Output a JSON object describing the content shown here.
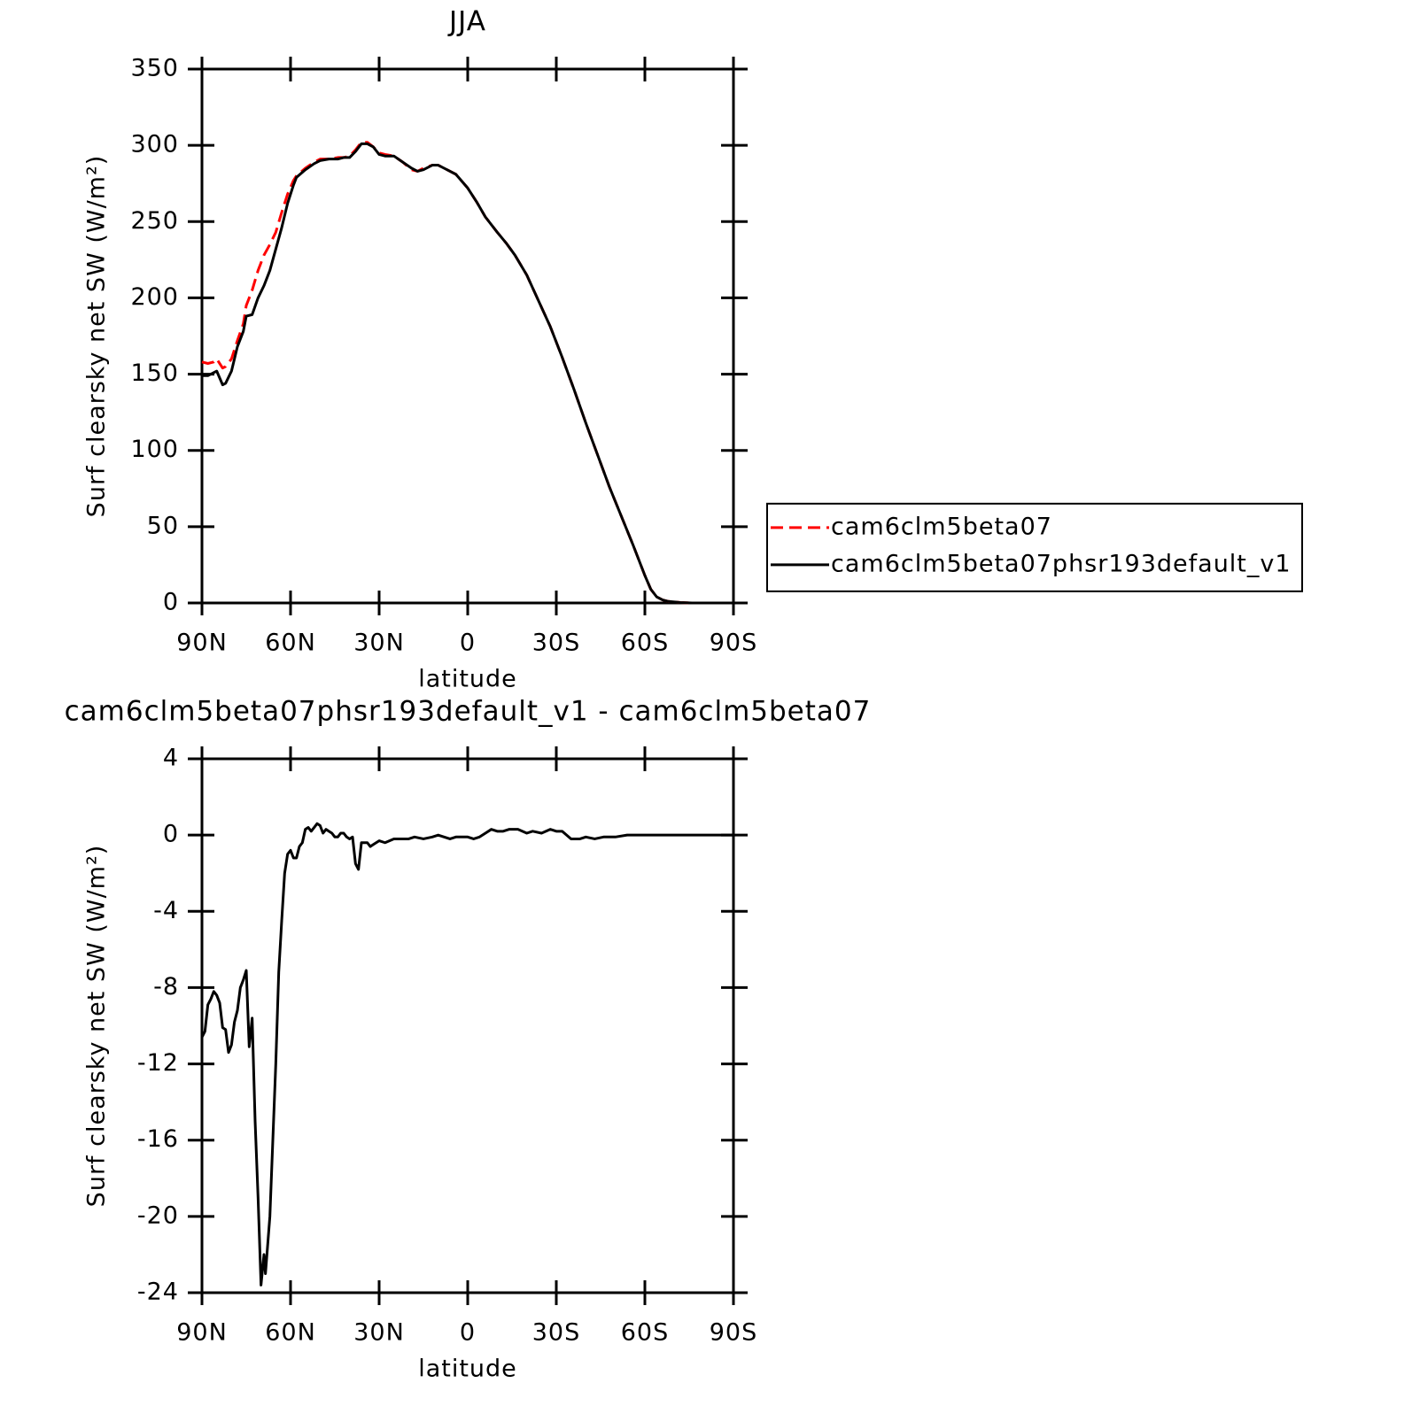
{
  "chart_data": [
    {
      "type": "line",
      "title": "JJA",
      "xlabel": "latitude",
      "ylabel": "Surf clearsky net SW (W/m²)",
      "x": [
        90,
        88,
        86,
        85,
        83,
        82,
        80,
        78,
        76,
        75,
        73,
        71,
        69,
        67,
        65,
        63,
        61,
        59,
        58,
        55,
        52,
        50,
        47,
        44,
        42,
        40,
        38,
        36,
        34,
        32,
        30,
        28,
        25,
        22,
        19,
        17,
        15,
        12,
        10,
        7,
        4,
        0,
        -3,
        -6,
        -10,
        -13,
        -16,
        -20,
        -24,
        -28,
        -32,
        -36,
        -40,
        -44,
        -48,
        -52,
        -56,
        -58,
        -60,
        -62,
        -64,
        -66,
        -68,
        -72,
        -76,
        -80,
        -85,
        -90
      ],
      "series": [
        {
          "name": "cam6clm5beta07",
          "color": "#ff0000",
          "dash": true,
          "values": [
            158,
            157,
            158,
            160,
            154,
            155,
            160,
            172,
            183,
            195,
            205,
            218,
            228,
            235,
            243,
            256,
            268,
            277,
            280,
            285,
            289,
            291,
            291,
            292,
            292,
            293,
            297,
            302,
            302,
            299,
            295,
            294,
            293,
            289,
            284,
            283,
            285,
            287,
            287,
            284,
            281,
            272,
            263,
            253,
            243,
            236,
            228,
            215,
            198,
            181,
            161,
            140,
            118,
            97,
            76,
            57,
            38,
            28,
            18,
            9,
            4,
            2,
            1,
            0.3,
            0,
            0,
            0,
            0
          ]
        },
        {
          "name": "cam6clm5beta07phsr193default_v1",
          "color": "#000000",
          "dash": false,
          "values": [
            149,
            149,
            151,
            152,
            143,
            144,
            152,
            168,
            178,
            188,
            189,
            200,
            208,
            218,
            232,
            246,
            262,
            274,
            279,
            284,
            288,
            290,
            291,
            291,
            292,
            292,
            296,
            301,
            301,
            299,
            294,
            293,
            293,
            289,
            285,
            283,
            284,
            287,
            287,
            284,
            281,
            272,
            263,
            253,
            243,
            236,
            228,
            215,
            198,
            181,
            161,
            140,
            118,
            97,
            76,
            57,
            38,
            28,
            18,
            9,
            4,
            2,
            1,
            0.3,
            0,
            0,
            0,
            0
          ]
        }
      ],
      "xlim": [
        90,
        -90
      ],
      "xticks": [
        {
          "value": 90,
          "label": "90N"
        },
        {
          "value": 60,
          "label": "60N"
        },
        {
          "value": 30,
          "label": "30N"
        },
        0,
        {
          "value": -30,
          "label": "30S"
        },
        {
          "value": -60,
          "label": "60S"
        },
        {
          "value": -90,
          "label": "90S"
        }
      ],
      "ylim": [
        0,
        350
      ],
      "yticks": [
        0,
        50,
        100,
        150,
        200,
        250,
        300,
        350
      ],
      "legend": "right"
    },
    {
      "type": "line",
      "title": "cam6clm5beta07phsr193default_v1 - cam6clm5beta07",
      "xlabel": "latitude",
      "ylabel": "Surf clearsky net SW (W/m²)",
      "x": [
        90,
        89,
        88,
        87,
        86,
        85,
        84,
        83,
        82,
        81,
        80,
        79,
        78,
        77,
        76,
        75,
        74,
        73,
        72,
        71,
        70,
        69,
        68.5,
        67,
        66,
        65,
        64,
        63,
        62,
        61,
        60,
        59,
        58,
        57,
        56,
        55,
        54,
        53,
        52,
        51,
        50,
        49,
        48,
        47,
        46,
        45,
        44,
        43,
        42,
        41,
        40,
        39,
        38,
        37,
        36,
        35,
        34,
        33,
        32,
        30,
        28,
        25,
        22,
        20,
        18,
        15,
        12,
        10,
        8,
        6,
        4,
        2,
        0,
        -2,
        -4,
        -6,
        -8,
        -10,
        -12,
        -14,
        -17,
        -20,
        -22,
        -25,
        -28,
        -30,
        -32,
        -35,
        -38,
        -40,
        -43,
        -46,
        -50,
        -54,
        -58,
        -62,
        -70,
        -80,
        -90
      ],
      "series": [
        {
          "color": "#000000",
          "dash": false,
          "values": [
            -10.6,
            -10.3,
            -8.9,
            -8.6,
            -8.2,
            -8.4,
            -8.8,
            -10.1,
            -10.2,
            -11.4,
            -11,
            -9.8,
            -9.2,
            -8,
            -7.6,
            -7.1,
            -11.1,
            -9.6,
            -15,
            -19,
            -23.6,
            -22,
            -23,
            -20,
            -16,
            -12,
            -7.2,
            -4.5,
            -2,
            -1,
            -0.8,
            -1.2,
            -1.2,
            -0.6,
            -0.4,
            0.3,
            0.4,
            0.2,
            0.4,
            0.6,
            0.5,
            0.1,
            0.3,
            0.2,
            0.1,
            -0.1,
            -0.1,
            0.1,
            0.1,
            -0.1,
            -0.2,
            -0.1,
            -1.5,
            -1.8,
            -0.4,
            -0.4,
            -0.4,
            -0.6,
            -0.5,
            -0.3,
            -0.4,
            -0.2,
            -0.2,
            -0.2,
            -0.1,
            -0.2,
            -0.1,
            0,
            -0.1,
            -0.2,
            -0.1,
            -0.1,
            -0.1,
            -0.2,
            -0.1,
            0.1,
            0.3,
            0.2,
            0.2,
            0.3,
            0.3,
            0.1,
            0.2,
            0.1,
            0.3,
            0.2,
            0.2,
            -0.2,
            -0.2,
            -0.1,
            -0.2,
            -0.1,
            -0.1,
            0,
            0,
            0,
            0,
            0,
            0
          ]
        }
      ],
      "xlim": [
        90,
        -90
      ],
      "xticks": [
        {
          "value": 90,
          "label": "90N"
        },
        {
          "value": 60,
          "label": "60N"
        },
        {
          "value": 30,
          "label": "30N"
        },
        0,
        {
          "value": -30,
          "label": "30S"
        },
        {
          "value": -60,
          "label": "60S"
        },
        {
          "value": -90,
          "label": "90S"
        }
      ],
      "ylim": [
        -24,
        4
      ],
      "yticks": [
        -24,
        -20,
        -16,
        -12,
        -8,
        -4,
        0,
        4
      ]
    }
  ]
}
